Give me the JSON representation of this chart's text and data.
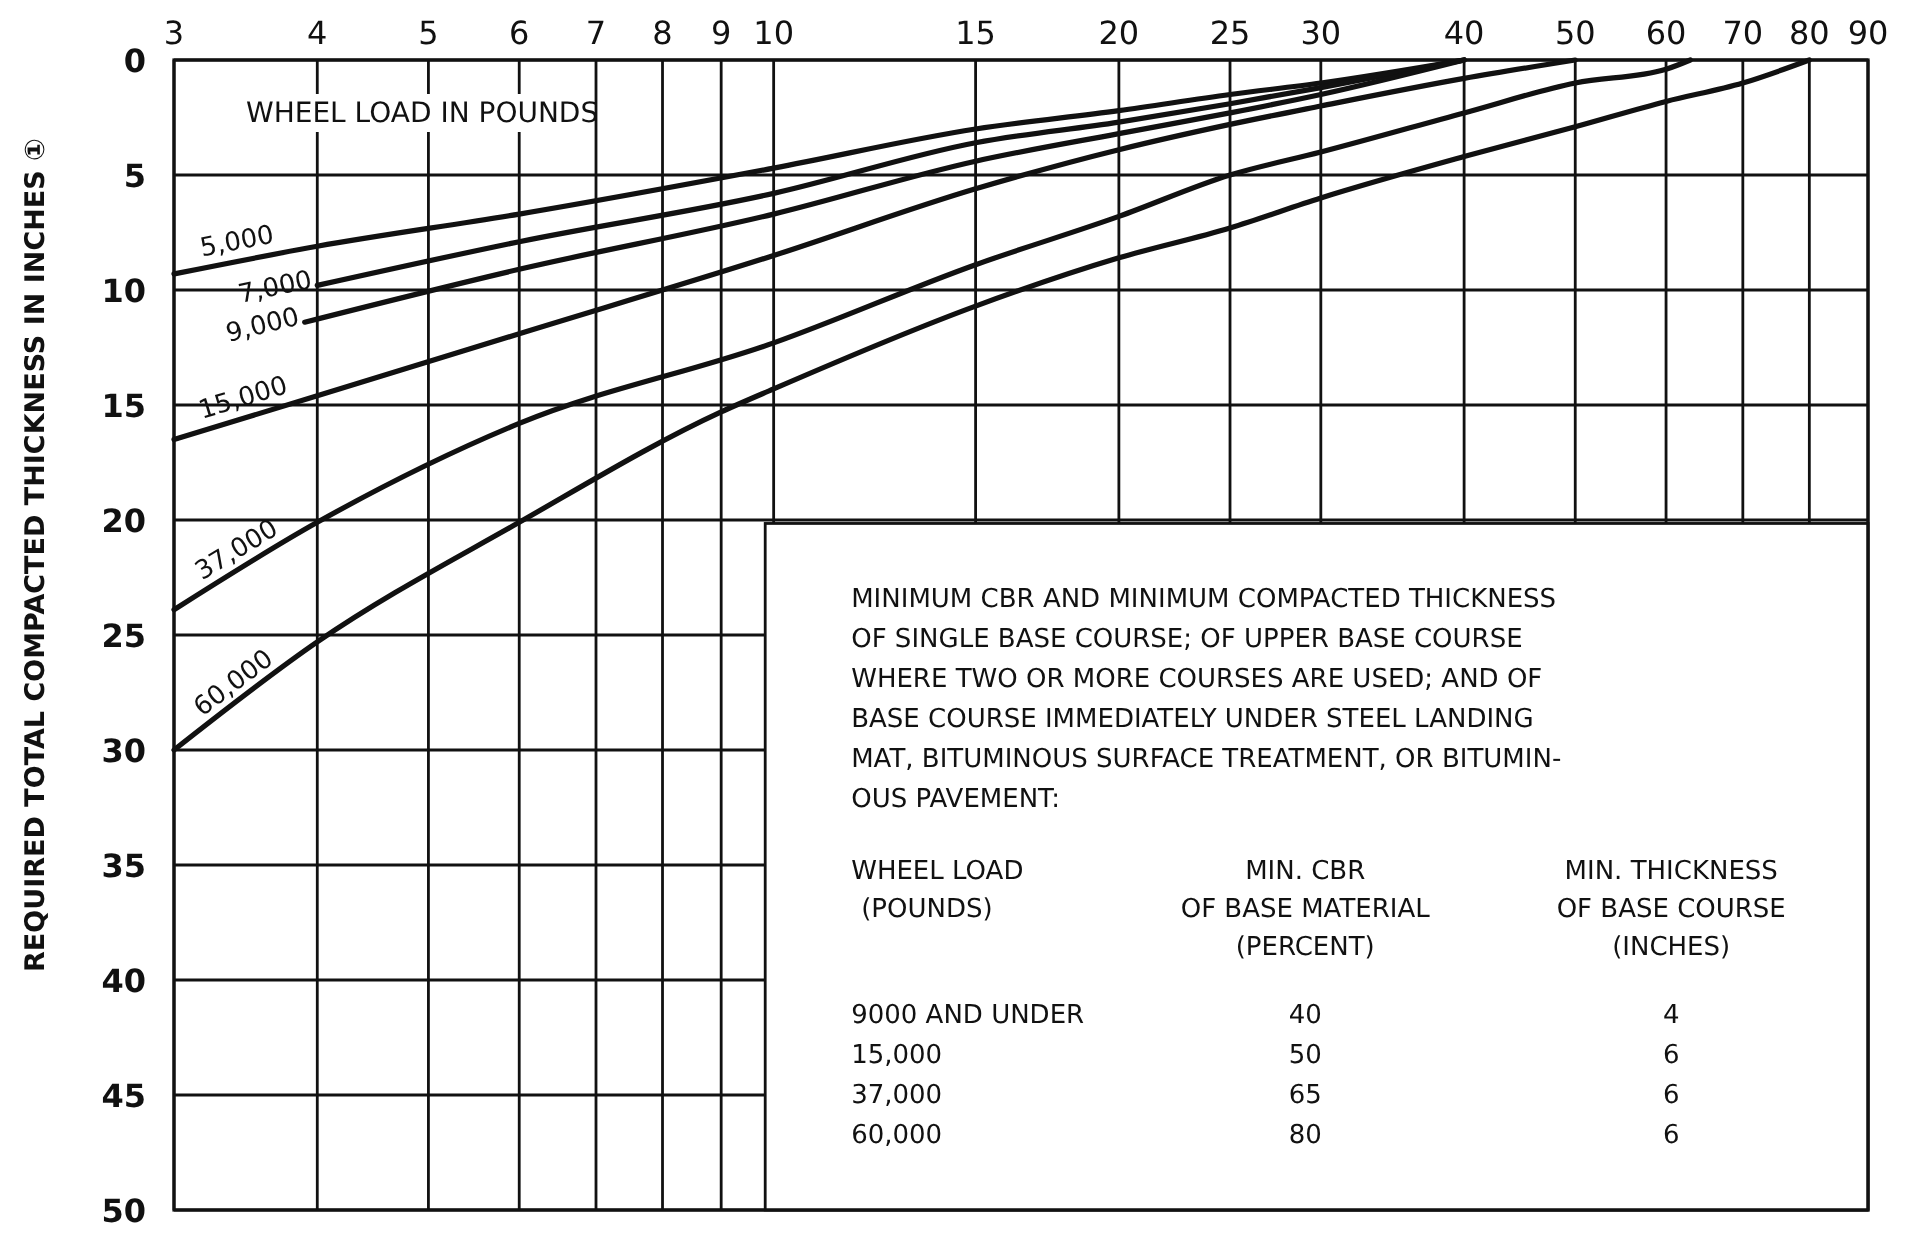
{
  "chart_data": {
    "type": "line",
    "ylabel": "REQUIRED TOTAL COMPACTED THICKNESS IN INCHES ①",
    "legend_title": "WHEEL LOAD IN POUNDS",
    "log": "x",
    "grid": true,
    "line_style": "solid",
    "xlim": [
      3,
      90
    ],
    "xticks": [
      3,
      4,
      5,
      6,
      7,
      8,
      9,
      10,
      15,
      20,
      25,
      30,
      40,
      50,
      60,
      70,
      80,
      90
    ],
    "ylim": [
      50,
      0
    ],
    "yticks": [
      0,
      5,
      10,
      15,
      20,
      25,
      30,
      35,
      40,
      45,
      50
    ],
    "series": [
      {
        "name": "5,000",
        "color": "#111111",
        "x": [
          3,
          4,
          6,
          10,
          15,
          20,
          25,
          30,
          40
        ],
        "values": [
          9.3,
          8.1,
          6.7,
          4.7,
          3,
          2.2,
          1.5,
          1,
          0
        ]
      },
      {
        "name": "7,000",
        "color": "#111111",
        "x": [
          4,
          6,
          10,
          15,
          20,
          25,
          30,
          40
        ],
        "values": [
          9.8,
          7.9,
          5.8,
          3.6,
          2.7,
          1.9,
          1.2,
          0
        ]
      },
      {
        "name": "9,000",
        "color": "#111111",
        "x": [
          3.9,
          6,
          10,
          15,
          20,
          25,
          30,
          40
        ],
        "values": [
          11.4,
          9.1,
          6.7,
          4.4,
          3.2,
          2.3,
          1.5,
          0
        ]
      },
      {
        "name": "15,000",
        "color": "#111111",
        "x": [
          3,
          4,
          6,
          10,
          15,
          20,
          25,
          30,
          40,
          50
        ],
        "values": [
          16.5,
          14.6,
          11.9,
          8.5,
          5.6,
          3.9,
          2.8,
          2,
          0.8,
          0
        ]
      },
      {
        "name": "37,000",
        "color": "#111111",
        "x": [
          3,
          4,
          6,
          10,
          15,
          20,
          25,
          30,
          40,
          50,
          60,
          63
        ],
        "values": [
          23.9,
          20.1,
          15.8,
          12.3,
          8.9,
          6.8,
          5,
          4,
          2.3,
          1,
          0.4,
          0
        ]
      },
      {
        "name": "60,000",
        "color": "#111111",
        "x": [
          3,
          4,
          6,
          9,
          10,
          15,
          20,
          25,
          30,
          40,
          50,
          60,
          70,
          80
        ],
        "values": [
          30,
          25.3,
          20.1,
          15.3,
          14.3,
          10.7,
          8.6,
          7.3,
          6,
          4.2,
          2.9,
          1.8,
          1,
          0
        ]
      }
    ],
    "annotations": [
      "MINIMUM CBR AND MINIMUM COMPACTED THICKNESS\nOF SINGLE BASE COURSE; OF UPPER BASE COURSE\nWHERE TWO OR MORE COURSES ARE USED; AND OF\nBASE COURSE IMMEDIATELY UNDER STEEL LANDING\nMAT, BITUMINOUS SURFACE TREATMENT, OR BITUMIN-\nOUS PAVEMENT:",
      "WHEEL LOAD\n(POUNDS)",
      "MIN. CBR\nOF BASE MATERIAL\n(PERCENT)",
      "MIN. THICKNESS\nOF BASE COURSE\n(INCHES)",
      "9000 AND UNDER",
      "40",
      "4",
      "15,000",
      "50",
      "6",
      "37,000",
      "65",
      "6",
      "60,000",
      "80",
      "6"
    ]
  }
}
